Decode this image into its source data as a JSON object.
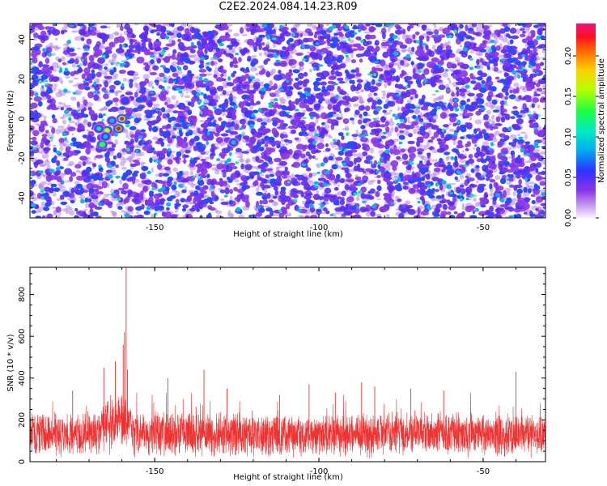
{
  "title": "C2E2.2024.084.14.23.R09",
  "colors": {
    "blob_scale": [
      "#e8d8f4",
      "#b484e8",
      "#8a35e8",
      "#5a2cf0",
      "#2a4cff",
      "#0ab6e8",
      "#10e8a8",
      "#3cff20",
      "#d8ff00",
      "#ff9c00",
      "#ff1010",
      "#e8147a"
    ],
    "snr_line": "#ee3333",
    "axis": "#000000"
  },
  "chart_data": [
    {
      "type": "heatmap",
      "title": "",
      "xlabel": "Height of straight line (km)",
      "ylabel": "Frequency (Hz)",
      "xlim": [
        -188,
        -31
      ],
      "ylim": [
        -50,
        48
      ],
      "xticks": [
        -150,
        -100,
        -50
      ],
      "yticks": [
        -40,
        -20,
        0,
        20,
        40
      ],
      "colorbar": {
        "label": "Normalized spectral amplitude",
        "range": [
          0,
          0.24
        ],
        "ticks": [
          "0.00",
          "0.05",
          "0.10",
          "0.15",
          "0.20"
        ]
      },
      "hotspots": [
        {
          "x": -164.5,
          "y": -6,
          "value": 0.17
        },
        {
          "x": -160,
          "y": 0,
          "value": 0.23
        },
        {
          "x": -166,
          "y": -13,
          "value": 0.15
        },
        {
          "x": -161,
          "y": -5,
          "value": 0.21
        },
        {
          "x": -167,
          "y": -5,
          "value": 0.12
        },
        {
          "x": -163,
          "y": -1,
          "value": 0.1
        },
        {
          "x": -126,
          "y": -12,
          "value": 0.1
        },
        {
          "x": -165,
          "y": -9,
          "value": 0.11
        },
        {
          "x": -159,
          "y": 9,
          "value": 0.09
        }
      ]
    },
    {
      "type": "line",
      "title": "",
      "xlabel": "Height of straight line (km)",
      "ylabel": "SNR (10 * v/v)",
      "xlim": [
        -188,
        -31
      ],
      "ylim": [
        0,
        930
      ],
      "xticks": [
        -150,
        -100,
        -50
      ],
      "yticks": [
        0,
        200,
        400,
        600,
        800
      ],
      "baseline_mean": 130,
      "noise_range": [
        0,
        300
      ],
      "peaks": [
        {
          "x": -158.7,
          "y": 930
        },
        {
          "x": -159.2,
          "y": 620
        },
        {
          "x": -159.6,
          "y": 560
        },
        {
          "x": -158.3,
          "y": 440
        },
        {
          "x": -165.5,
          "y": 450
        },
        {
          "x": -162,
          "y": 480
        },
        {
          "x": -146,
          "y": 400
        },
        {
          "x": -135,
          "y": 440
        },
        {
          "x": -128,
          "y": 350
        },
        {
          "x": -103,
          "y": 370
        },
        {
          "x": -87,
          "y": 380
        },
        {
          "x": -83,
          "y": 360
        },
        {
          "x": -72,
          "y": 350
        },
        {
          "x": -62,
          "y": 340
        },
        {
          "x": -40,
          "y": 430
        },
        {
          "x": -175,
          "y": 340
        },
        {
          "x": -112,
          "y": 320
        },
        {
          "x": -95,
          "y": 330
        }
      ]
    }
  ]
}
